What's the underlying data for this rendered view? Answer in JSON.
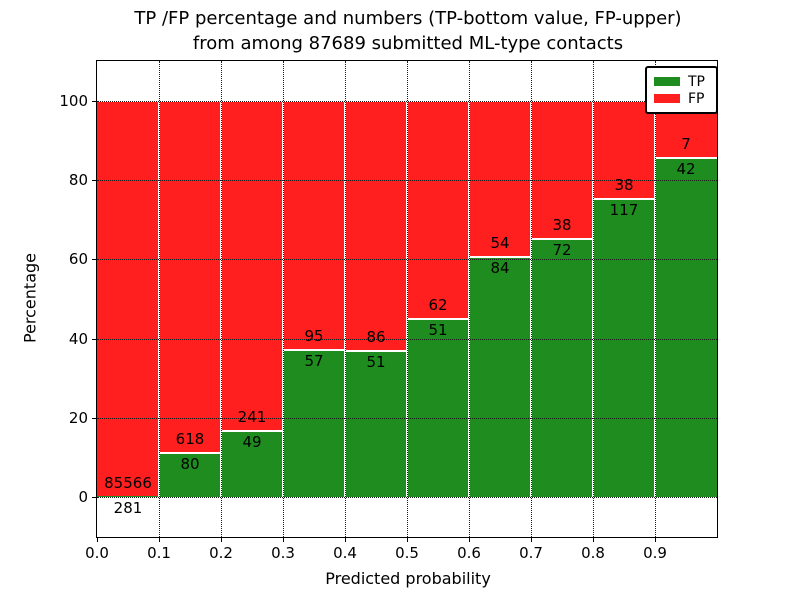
{
  "chart_data": {
    "type": "bar",
    "stacked": true,
    "normalized_to_percent": true,
    "title": "TP /FP percentage and numbers (TP-bottom value, FP-upper) from among 87689 submitted ML-type contacts",
    "title_line1": "TP /FP percentage and numbers (TP-bottom value, FP-upper)",
    "title_line2": "from among 87689 submitted ML-type contacts",
    "xlabel": "Predicted probability",
    "ylabel": "Percentage",
    "categories": [
      "0.0",
      "0.1",
      "0.2",
      "0.3",
      "0.4",
      "0.5",
      "0.6",
      "0.7",
      "0.8",
      "0.9"
    ],
    "bin_width": 0.1,
    "series": [
      {
        "name": "TP",
        "counts": [
          281,
          80,
          49,
          57,
          51,
          51,
          84,
          72,
          117,
          42
        ]
      },
      {
        "name": "FP",
        "counts": [
          85566,
          618,
          241,
          95,
          86,
          62,
          54,
          38,
          38,
          7
        ]
      }
    ],
    "tp_percent_of_bin": [
      0.33,
      11.46,
      16.9,
      37.5,
      37.23,
      45.13,
      60.87,
      65.45,
      75.48,
      85.71
    ],
    "total_contacts": 87689,
    "ylim": [
      -10,
      110
    ],
    "xlim": [
      0.0,
      1.0
    ],
    "yticks": [
      0,
      20,
      40,
      60,
      80,
      100
    ],
    "ytick_labels": [
      "0",
      "20",
      "40",
      "60",
      "80",
      "100"
    ],
    "xtick_labels": [
      "0.0",
      "0.1",
      "0.2",
      "0.3",
      "0.4",
      "0.5",
      "0.6",
      "0.7",
      "0.8",
      "0.9"
    ],
    "grid": true,
    "grid_style": "dotted",
    "legend": {
      "position": "upper right",
      "entries": [
        {
          "label": "TP",
          "color": "#1e8c1e"
        },
        {
          "label": "FP",
          "color": "#ff1f1f"
        }
      ]
    },
    "colors": {
      "tp": "#1e8c1e",
      "fp": "#ff1f1f",
      "bar_edge": "#ffffff",
      "grid": "#1a1a1a",
      "text": "#000000",
      "background": "#ffffff"
    }
  }
}
